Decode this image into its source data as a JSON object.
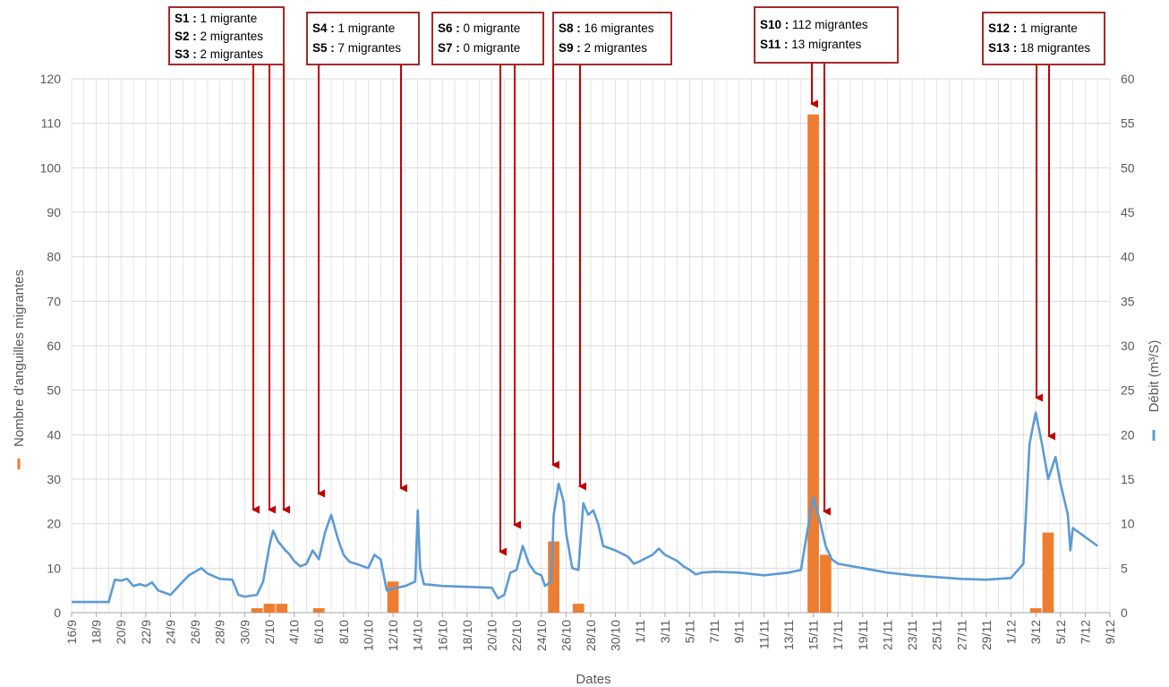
{
  "chart_data": {
    "type": "bar+line",
    "xlabel": "Dates",
    "x_ticks": [
      "16/9",
      "18/9",
      "20/9",
      "22/9",
      "24/9",
      "26/9",
      "28/9",
      "30/9",
      "2/10",
      "4/10",
      "6/10",
      "8/10",
      "10/10",
      "12/10",
      "14/10",
      "16/10",
      "18/10",
      "20/10",
      "22/10",
      "24/10",
      "26/10",
      "28/10",
      "30/10",
      "1/11",
      "3/11",
      "5/11",
      "7/11",
      "9/11",
      "11/11",
      "13/11",
      "15/11",
      "17/11",
      "19/11",
      "21/11",
      "23/11",
      "25/11",
      "27/11",
      "29/11",
      "1/12",
      "3/12",
      "5/12",
      "7/12",
      "9/12"
    ],
    "y_left": {
      "label": "Nombre d'anguilles migrantes",
      "min": 0,
      "max": 120,
      "step": 10
    },
    "y_right": {
      "label": "Débit (m³/S)",
      "min": 0,
      "max": 60,
      "step": 5
    },
    "grid": true,
    "series": [
      {
        "name": "Nombre d'anguilles migrantes",
        "kind": "bar",
        "axis": "left",
        "color": "#ED7D31",
        "points": [
          {
            "date": "1/10",
            "value": 1
          },
          {
            "date": "2/10",
            "value": 2
          },
          {
            "date": "3/10",
            "value": 2
          },
          {
            "date": "6/10",
            "value": 1
          },
          {
            "date": "12/10",
            "value": 7
          },
          {
            "date": "25/10",
            "value": 16
          },
          {
            "date": "27/10",
            "value": 2
          },
          {
            "date": "15/11",
            "value": 112
          },
          {
            "date": "16/11",
            "value": 13
          },
          {
            "date": "3/12",
            "value": 1
          },
          {
            "date": "4/12",
            "value": 18
          }
        ]
      },
      {
        "name": "Débit (m³/S)",
        "kind": "line",
        "axis": "right",
        "color": "#5B9BD5",
        "points": [
          [
            "16/9",
            1.2
          ],
          [
            "18/9",
            1.2
          ],
          [
            "19/9",
            1.2
          ],
          [
            "19.5/9",
            3.7
          ],
          [
            "20/9",
            3.6
          ],
          [
            "20.5/9",
            3.8
          ],
          [
            "21/9",
            3.0
          ],
          [
            "21.5/9",
            3.2
          ],
          [
            "22/9",
            3.0
          ],
          [
            "22.5/9",
            3.4
          ],
          [
            "23/9",
            2.5
          ],
          [
            "24/9",
            2.0
          ],
          [
            "25/9",
            3.5
          ],
          [
            "25.5/9",
            4.2
          ],
          [
            "26/9",
            4.6
          ],
          [
            "26.5/9",
            5.0
          ],
          [
            "27/9",
            4.4
          ],
          [
            "28/9",
            3.8
          ],
          [
            "29/9",
            3.7
          ],
          [
            "29.5/9",
            2.0
          ],
          [
            "30/9",
            1.8
          ],
          [
            "1/10",
            2.0
          ],
          [
            "1.5/10",
            3.5
          ],
          [
            "2/10",
            7.5
          ],
          [
            "2.3/10",
            9.2
          ],
          [
            "2.7/10",
            8.0
          ],
          [
            "3/10",
            7.5
          ],
          [
            "3.3/10",
            7.0
          ],
          [
            "3.6/10",
            6.6
          ],
          [
            "4/10",
            5.8
          ],
          [
            "4.5/10",
            5.2
          ],
          [
            "5/10",
            5.5
          ],
          [
            "5.5/10",
            7.0
          ],
          [
            "6/10",
            6.0
          ],
          [
            "6.5/10",
            9.0
          ],
          [
            "7/10",
            11.0
          ],
          [
            "7.5/10",
            8.5
          ],
          [
            "8/10",
            6.5
          ],
          [
            "8.5/10",
            5.7
          ],
          [
            "9/10",
            5.5
          ],
          [
            "10/10",
            5.0
          ],
          [
            "10.5/10",
            6.5
          ],
          [
            "11/10",
            6.0
          ],
          [
            "11.5/10",
            2.5
          ],
          [
            "12/10",
            2.7
          ],
          [
            "13/10",
            3.0
          ],
          [
            "13.8/10",
            3.5
          ],
          [
            "14/10",
            11.5
          ],
          [
            "14.2/10",
            5.0
          ],
          [
            "14.5/10",
            3.2
          ],
          [
            "16/10",
            3.0
          ],
          [
            "18/10",
            2.9
          ],
          [
            "20/10",
            2.8
          ],
          [
            "20.5/10",
            1.6
          ],
          [
            "21/10",
            2.0
          ],
          [
            "21.5/10",
            4.5
          ],
          [
            "22/10",
            4.8
          ],
          [
            "22.5/10",
            7.5
          ],
          [
            "23/10",
            5.5
          ],
          [
            "23.5/10",
            4.5
          ],
          [
            "24/10",
            4.2
          ],
          [
            "24.3/10",
            3.0
          ],
          [
            "24.8/10",
            3.5
          ],
          [
            "25/10",
            11.0
          ],
          [
            "25.4/10",
            14.5
          ],
          [
            "25.8/10",
            12.5
          ],
          [
            "26/10",
            9.0
          ],
          [
            "26.5/10",
            5.0
          ],
          [
            "27/10",
            4.8
          ],
          [
            "27.4/10",
            12.3
          ],
          [
            "27.8/10",
            11.0
          ],
          [
            "28.2/10",
            11.5
          ],
          [
            "28.6/10",
            10.0
          ],
          [
            "29/10",
            7.5
          ],
          [
            "30/10",
            7.0
          ],
          [
            "31/10",
            6.3
          ],
          [
            "31.5/10",
            5.5
          ],
          [
            "1/11",
            5.8
          ],
          [
            "2/11",
            6.5
          ],
          [
            "2.5/11",
            7.2
          ],
          [
            "3/11",
            6.5
          ],
          [
            "4/11",
            5.8
          ],
          [
            "4.5/11",
            5.2
          ],
          [
            "5/11",
            4.8
          ],
          [
            "5.5/11",
            4.3
          ],
          [
            "6/11",
            4.5
          ],
          [
            "7/11",
            4.6
          ],
          [
            "9/11",
            4.5
          ],
          [
            "11/11",
            4.2
          ],
          [
            "13/11",
            4.5
          ],
          [
            "14/11",
            4.8
          ],
          [
            "14.5/11",
            9.0
          ],
          [
            "15/11",
            13.0
          ],
          [
            "15.5/11",
            10.5
          ],
          [
            "16/11",
            7.5
          ],
          [
            "16.5/11",
            6.0
          ],
          [
            "17/11",
            5.5
          ],
          [
            "19/11",
            5.0
          ],
          [
            "21/11",
            4.5
          ],
          [
            "23/11",
            4.2
          ],
          [
            "25/11",
            4.0
          ],
          [
            "27/11",
            3.8
          ],
          [
            "29/11",
            3.7
          ],
          [
            "1/12",
            3.9
          ],
          [
            "2/12",
            5.5
          ],
          [
            "2.5/12",
            19.0
          ],
          [
            "3/12",
            22.5
          ],
          [
            "3.5/12",
            19.0
          ],
          [
            "4/12",
            15.0
          ],
          [
            "4.6/12",
            17.5
          ],
          [
            "5/12",
            14.5
          ],
          [
            "5.6/12",
            11.0
          ],
          [
            "5.8/12",
            7.0
          ],
          [
            "6/12",
            9.5
          ],
          [
            "7/12",
            8.5
          ],
          [
            "8/12",
            7.5
          ]
        ]
      }
    ],
    "annotations": [
      {
        "lines": [
          {
            "id": "S1 :",
            "text": " 1 migrante"
          },
          {
            "id": "S2 :",
            "text": " 2 migrantes"
          },
          {
            "id": "S3 :",
            "text": " 2 migrantes"
          }
        ],
        "arrows_to": [
          "1/10",
          "2/10",
          "3/10"
        ]
      },
      {
        "lines": [
          {
            "id": "S4 :",
            "text": " 1 migrante"
          },
          {
            "id": "S5 :",
            "text": " 7 migrantes"
          }
        ],
        "arrows_to": [
          "6/10",
          "12/10"
        ]
      },
      {
        "lines": [
          {
            "id": "S6 :",
            "text": " 0 migrante"
          },
          {
            "id": "S7 :",
            "text": " 0 migrante"
          }
        ],
        "arrows_to": [
          "20/10",
          "21/10"
        ]
      },
      {
        "lines": [
          {
            "id": "S8 :",
            "text": " 16 migrantes"
          },
          {
            "id": "S9 :",
            "text": " 2 migrantes"
          }
        ],
        "arrows_to": [
          "25/10",
          "27/10"
        ]
      },
      {
        "lines": [
          {
            "id": "S10 :",
            "text": " 112 migrantes"
          },
          {
            "id": "S11 :",
            "text": " 13 migrantes"
          }
        ],
        "arrows_to": [
          "15/11",
          "16/11"
        ]
      },
      {
        "lines": [
          {
            "id": "S12 :",
            "text": " 1 migrante"
          },
          {
            "id": "S13 :",
            "text": " 18 migrantes"
          }
        ],
        "arrows_to": [
          "3/12",
          "4/12"
        ]
      }
    ],
    "colors": {
      "bar": "#ED7D31",
      "line": "#5B9BD5",
      "annotation_border": "#A52A2A",
      "arrow": "#C00000",
      "grid": "#D9D9D9"
    }
  }
}
